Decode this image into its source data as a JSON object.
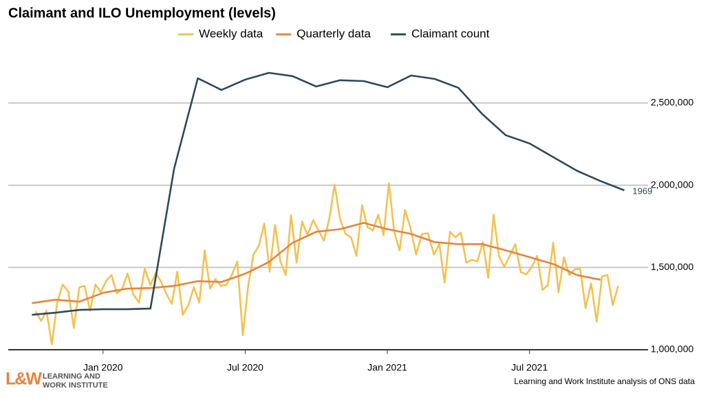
{
  "chart_data": {
    "type": "line",
    "title": "Claimant and ILO Unemployment (levels)",
    "source": "Learning and Work Institute analysis of ONS data",
    "logo": {
      "mark": "L&W",
      "lines": [
        "LEARNING AND",
        "WORK INSTITUTE"
      ]
    },
    "legend": "top",
    "grid": true,
    "ylim": [
      1000000,
      2750000
    ],
    "yticks": [
      {
        "value": 1000000,
        "label": "1,000,000"
      },
      {
        "value": 1500000,
        "label": "1,500,000"
      },
      {
        "value": 2000000,
        "label": "2,000,000"
      },
      {
        "value": 2500000,
        "label": "2,500,000"
      }
    ],
    "xlim": [
      "2019-09",
      "2021-12"
    ],
    "xticks": [
      {
        "value": "2020-01",
        "label": "Jan 2020"
      },
      {
        "value": "2020-07",
        "label": "Jul 2020"
      },
      {
        "value": "2021-01",
        "label": "Jan 2021"
      },
      {
        "value": "2021-07",
        "label": "Jul 2021"
      }
    ],
    "series": [
      {
        "name": "Weekly data",
        "color": "#f3c150",
        "x": [
          "2019-10-06",
          "2019-10-13",
          "2019-10-20",
          "2019-10-27",
          "2019-11-03",
          "2019-11-10",
          "2019-11-17",
          "2019-11-24",
          "2019-12-01",
          "2019-12-08",
          "2019-12-15",
          "2019-12-22",
          "2019-12-29",
          "2020-01-05",
          "2020-01-12",
          "2020-01-19",
          "2020-01-26",
          "2020-02-02",
          "2020-02-09",
          "2020-02-16",
          "2020-02-23",
          "2020-03-01",
          "2020-03-08",
          "2020-03-15",
          "2020-03-22",
          "2020-03-29",
          "2020-04-05",
          "2020-04-12",
          "2020-04-19",
          "2020-04-26",
          "2020-05-03",
          "2020-05-10",
          "2020-05-17",
          "2020-05-24",
          "2020-05-31",
          "2020-06-07",
          "2020-06-14",
          "2020-06-21",
          "2020-06-28",
          "2020-07-05",
          "2020-07-12",
          "2020-07-19",
          "2020-07-26",
          "2020-08-02",
          "2020-08-09",
          "2020-08-16",
          "2020-08-23",
          "2020-08-30",
          "2020-09-06",
          "2020-09-13",
          "2020-09-20",
          "2020-09-27",
          "2020-10-04",
          "2020-10-11",
          "2020-10-18",
          "2020-10-25",
          "2020-11-01",
          "2020-11-08",
          "2020-11-15",
          "2020-11-22",
          "2020-11-29",
          "2020-12-06",
          "2020-12-13",
          "2020-12-20",
          "2020-12-27",
          "2021-01-03",
          "2021-01-10",
          "2021-01-17",
          "2021-01-24",
          "2021-01-31",
          "2021-02-07",
          "2021-02-14",
          "2021-02-21",
          "2021-02-28",
          "2021-03-07",
          "2021-03-14",
          "2021-03-21",
          "2021-03-28",
          "2021-04-04",
          "2021-04-11",
          "2021-04-18",
          "2021-04-25",
          "2021-05-02",
          "2021-05-09",
          "2021-05-16",
          "2021-05-23",
          "2021-05-30",
          "2021-06-06",
          "2021-06-13",
          "2021-06-20",
          "2021-06-27",
          "2021-07-04",
          "2021-07-11",
          "2021-07-18",
          "2021-07-25",
          "2021-08-01",
          "2021-08-08",
          "2021-08-15",
          "2021-08-22",
          "2021-08-29",
          "2021-09-05",
          "2021-09-12",
          "2021-09-19",
          "2021-09-26",
          "2021-10-03",
          "2021-10-10",
          "2021-10-17",
          "2021-10-24"
        ],
        "values": [
          1233000,
          1175000,
          1237000,
          1033000,
          1288000,
          1396000,
          1354000,
          1133000,
          1379000,
          1388000,
          1237000,
          1396000,
          1350000,
          1417000,
          1454000,
          1342000,
          1371000,
          1463000,
          1337000,
          1287000,
          1492000,
          1392000,
          1467000,
          1413000,
          1337000,
          1279000,
          1475000,
          1212000,
          1271000,
          1379000,
          1287000,
          1604000,
          1371000,
          1429000,
          1388000,
          1392000,
          1454000,
          1537000,
          1088000,
          1392000,
          1579000,
          1633000,
          1767000,
          1475000,
          1758000,
          1538000,
          1454000,
          1817000,
          1529000,
          1779000,
          1696000,
          1788000,
          1725000,
          1663000,
          1796000,
          2004000,
          1796000,
          1704000,
          1683000,
          1571000,
          1879000,
          1746000,
          1725000,
          1821000,
          1696000,
          2012000,
          1717000,
          1604000,
          1850000,
          1746000,
          1579000,
          1704000,
          1708000,
          1579000,
          1642000,
          1408000,
          1717000,
          1683000,
          1712000,
          1529000,
          1546000,
          1537000,
          1654000,
          1437000,
          1821000,
          1571000,
          1504000,
          1571000,
          1642000,
          1471000,
          1458000,
          1504000,
          1571000,
          1363000,
          1392000,
          1650000,
          1350000,
          1562000,
          1454000,
          1488000,
          1492000,
          1254000,
          1404000,
          1171000,
          1446000,
          1454000,
          1271000,
          1388000
        ]
      },
      {
        "name": "Quarterly data",
        "color": "#e9833b",
        "x": [
          "2019-10",
          "2019-11",
          "2019-12",
          "2020-01",
          "2020-02",
          "2020-03",
          "2020-04",
          "2020-05",
          "2020-06",
          "2020-07",
          "2020-08",
          "2020-09",
          "2020-10",
          "2020-11",
          "2020-12",
          "2021-01",
          "2021-02",
          "2021-03",
          "2021-04",
          "2021-05",
          "2021-06",
          "2021-07",
          "2021-08",
          "2021-09",
          "2021-10"
        ],
        "values": [
          1283000,
          1304000,
          1292000,
          1346000,
          1371000,
          1375000,
          1388000,
          1417000,
          1412000,
          1462000,
          1533000,
          1650000,
          1717000,
          1733000,
          1771000,
          1733000,
          1704000,
          1654000,
          1642000,
          1642000,
          1604000,
          1563000,
          1521000,
          1454000,
          1425000
        ]
      },
      {
        "name": "Claimant count",
        "color": "#2b4a5b",
        "end_label": "1969",
        "x": [
          "2019-10",
          "2019-11",
          "2019-12",
          "2020-01",
          "2020-02",
          "2020-03",
          "2020-04",
          "2020-05",
          "2020-06",
          "2020-07",
          "2020-08",
          "2020-09",
          "2020-10",
          "2020-11",
          "2020-12",
          "2021-01",
          "2021-02",
          "2021-03",
          "2021-04",
          "2021-05",
          "2021-06",
          "2021-07",
          "2021-08",
          "2021-09",
          "2021-10",
          "2021-11"
        ],
        "values": [
          1212000,
          1225000,
          1242000,
          1246000,
          1246000,
          1250000,
          2100000,
          2650000,
          2579000,
          2642000,
          2683000,
          2663000,
          2600000,
          2638000,
          2633000,
          2596000,
          2667000,
          2646000,
          2592000,
          2433000,
          2304000,
          2254000,
          2171000,
          2088000,
          2025000,
          1969000
        ]
      }
    ]
  }
}
